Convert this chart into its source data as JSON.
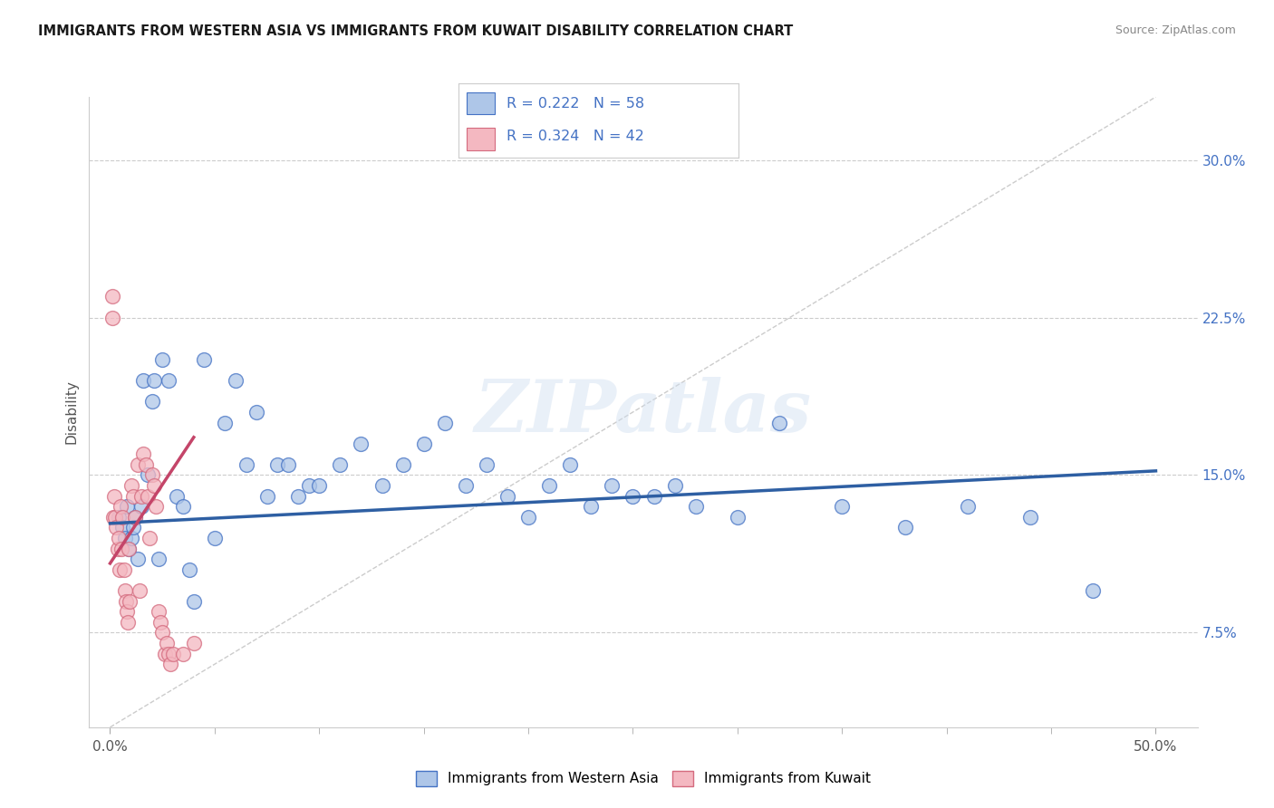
{
  "title": "IMMIGRANTS FROM WESTERN ASIA VS IMMIGRANTS FROM KUWAIT DISABILITY CORRELATION CHART",
  "source": "Source: ZipAtlas.com",
  "ylabel": "Disability",
  "x_ticks": [
    0.0,
    5.0,
    10.0,
    15.0,
    20.0,
    25.0,
    30.0,
    35.0,
    40.0,
    45.0,
    50.0
  ],
  "x_tick_labels_major": [
    "0.0%",
    "",
    "",
    "",
    "",
    "",
    "",
    "",
    "",
    "",
    "50.0%"
  ],
  "y_ticks": [
    0.075,
    0.15,
    0.225,
    0.3
  ],
  "y_tick_labels": [
    "7.5%",
    "15.0%",
    "22.5%",
    "30.0%"
  ],
  "xlim": [
    -1.0,
    52.0
  ],
  "ylim": [
    0.03,
    0.33
  ],
  "series1_name": "Immigrants from Western Asia",
  "series2_name": "Immigrants from Kuwait",
  "series1_color": "#aec6e8",
  "series2_color": "#f4b8c1",
  "series1_edge_color": "#4472c4",
  "series2_edge_color": "#d46a7e",
  "series1_line_color": "#2e5fa3",
  "series2_line_color": "#c44569",
  "legend1_label": "R = 0.222   N = 58",
  "legend2_label": "R = 0.324   N = 42",
  "watermark": "ZIPatlas",
  "blue_scatter_x": [
    0.4,
    0.6,
    0.7,
    0.8,
    0.9,
    1.0,
    1.1,
    1.2,
    1.3,
    1.5,
    1.6,
    1.8,
    2.0,
    2.1,
    2.5,
    2.8,
    3.2,
    3.5,
    4.0,
    4.5,
    5.0,
    5.5,
    6.0,
    6.5,
    7.0,
    7.5,
    8.0,
    8.5,
    9.0,
    9.5,
    10.0,
    11.0,
    12.0,
    13.0,
    14.0,
    15.0,
    16.0,
    17.0,
    18.0,
    19.0,
    20.0,
    21.0,
    22.0,
    23.0,
    24.0,
    25.0,
    26.0,
    27.0,
    28.0,
    30.0,
    32.0,
    35.0,
    38.0,
    41.0,
    44.0,
    47.0,
    2.3,
    3.8
  ],
  "blue_scatter_y": [
    0.13,
    0.125,
    0.12,
    0.135,
    0.115,
    0.12,
    0.125,
    0.13,
    0.11,
    0.135,
    0.195,
    0.15,
    0.185,
    0.195,
    0.205,
    0.195,
    0.14,
    0.135,
    0.09,
    0.205,
    0.12,
    0.175,
    0.195,
    0.155,
    0.18,
    0.14,
    0.155,
    0.155,
    0.14,
    0.145,
    0.145,
    0.155,
    0.165,
    0.145,
    0.155,
    0.165,
    0.175,
    0.145,
    0.155,
    0.14,
    0.13,
    0.145,
    0.155,
    0.135,
    0.145,
    0.14,
    0.14,
    0.145,
    0.135,
    0.13,
    0.175,
    0.135,
    0.125,
    0.135,
    0.13,
    0.095,
    0.11,
    0.105
  ],
  "pink_scatter_x": [
    0.1,
    0.15,
    0.2,
    0.25,
    0.3,
    0.35,
    0.4,
    0.45,
    0.5,
    0.55,
    0.6,
    0.65,
    0.7,
    0.75,
    0.8,
    0.85,
    0.9,
    0.95,
    1.0,
    1.1,
    1.2,
    1.3,
    1.4,
    1.5,
    1.6,
    1.7,
    1.8,
    1.9,
    2.0,
    2.1,
    2.2,
    2.3,
    2.4,
    2.5,
    2.6,
    2.7,
    2.8,
    2.9,
    3.0,
    3.5,
    4.0,
    0.1
  ],
  "pink_scatter_y": [
    0.225,
    0.13,
    0.14,
    0.13,
    0.125,
    0.115,
    0.12,
    0.105,
    0.135,
    0.115,
    0.13,
    0.105,
    0.095,
    0.09,
    0.085,
    0.08,
    0.115,
    0.09,
    0.145,
    0.14,
    0.13,
    0.155,
    0.095,
    0.14,
    0.16,
    0.155,
    0.14,
    0.12,
    0.15,
    0.145,
    0.135,
    0.085,
    0.08,
    0.075,
    0.065,
    0.07,
    0.065,
    0.06,
    0.065,
    0.065,
    0.07,
    0.235
  ],
  "blue_line_x0": 0.0,
  "blue_line_x1": 50.0,
  "blue_line_y0": 0.127,
  "blue_line_y1": 0.152,
  "pink_line_x0": 0.0,
  "pink_line_x1": 4.0,
  "pink_line_y0": 0.108,
  "pink_line_y1": 0.168,
  "diag_line_x0": 0.0,
  "diag_line_x1": 50.0,
  "diag_line_y0": 0.03,
  "diag_line_y1": 0.33
}
